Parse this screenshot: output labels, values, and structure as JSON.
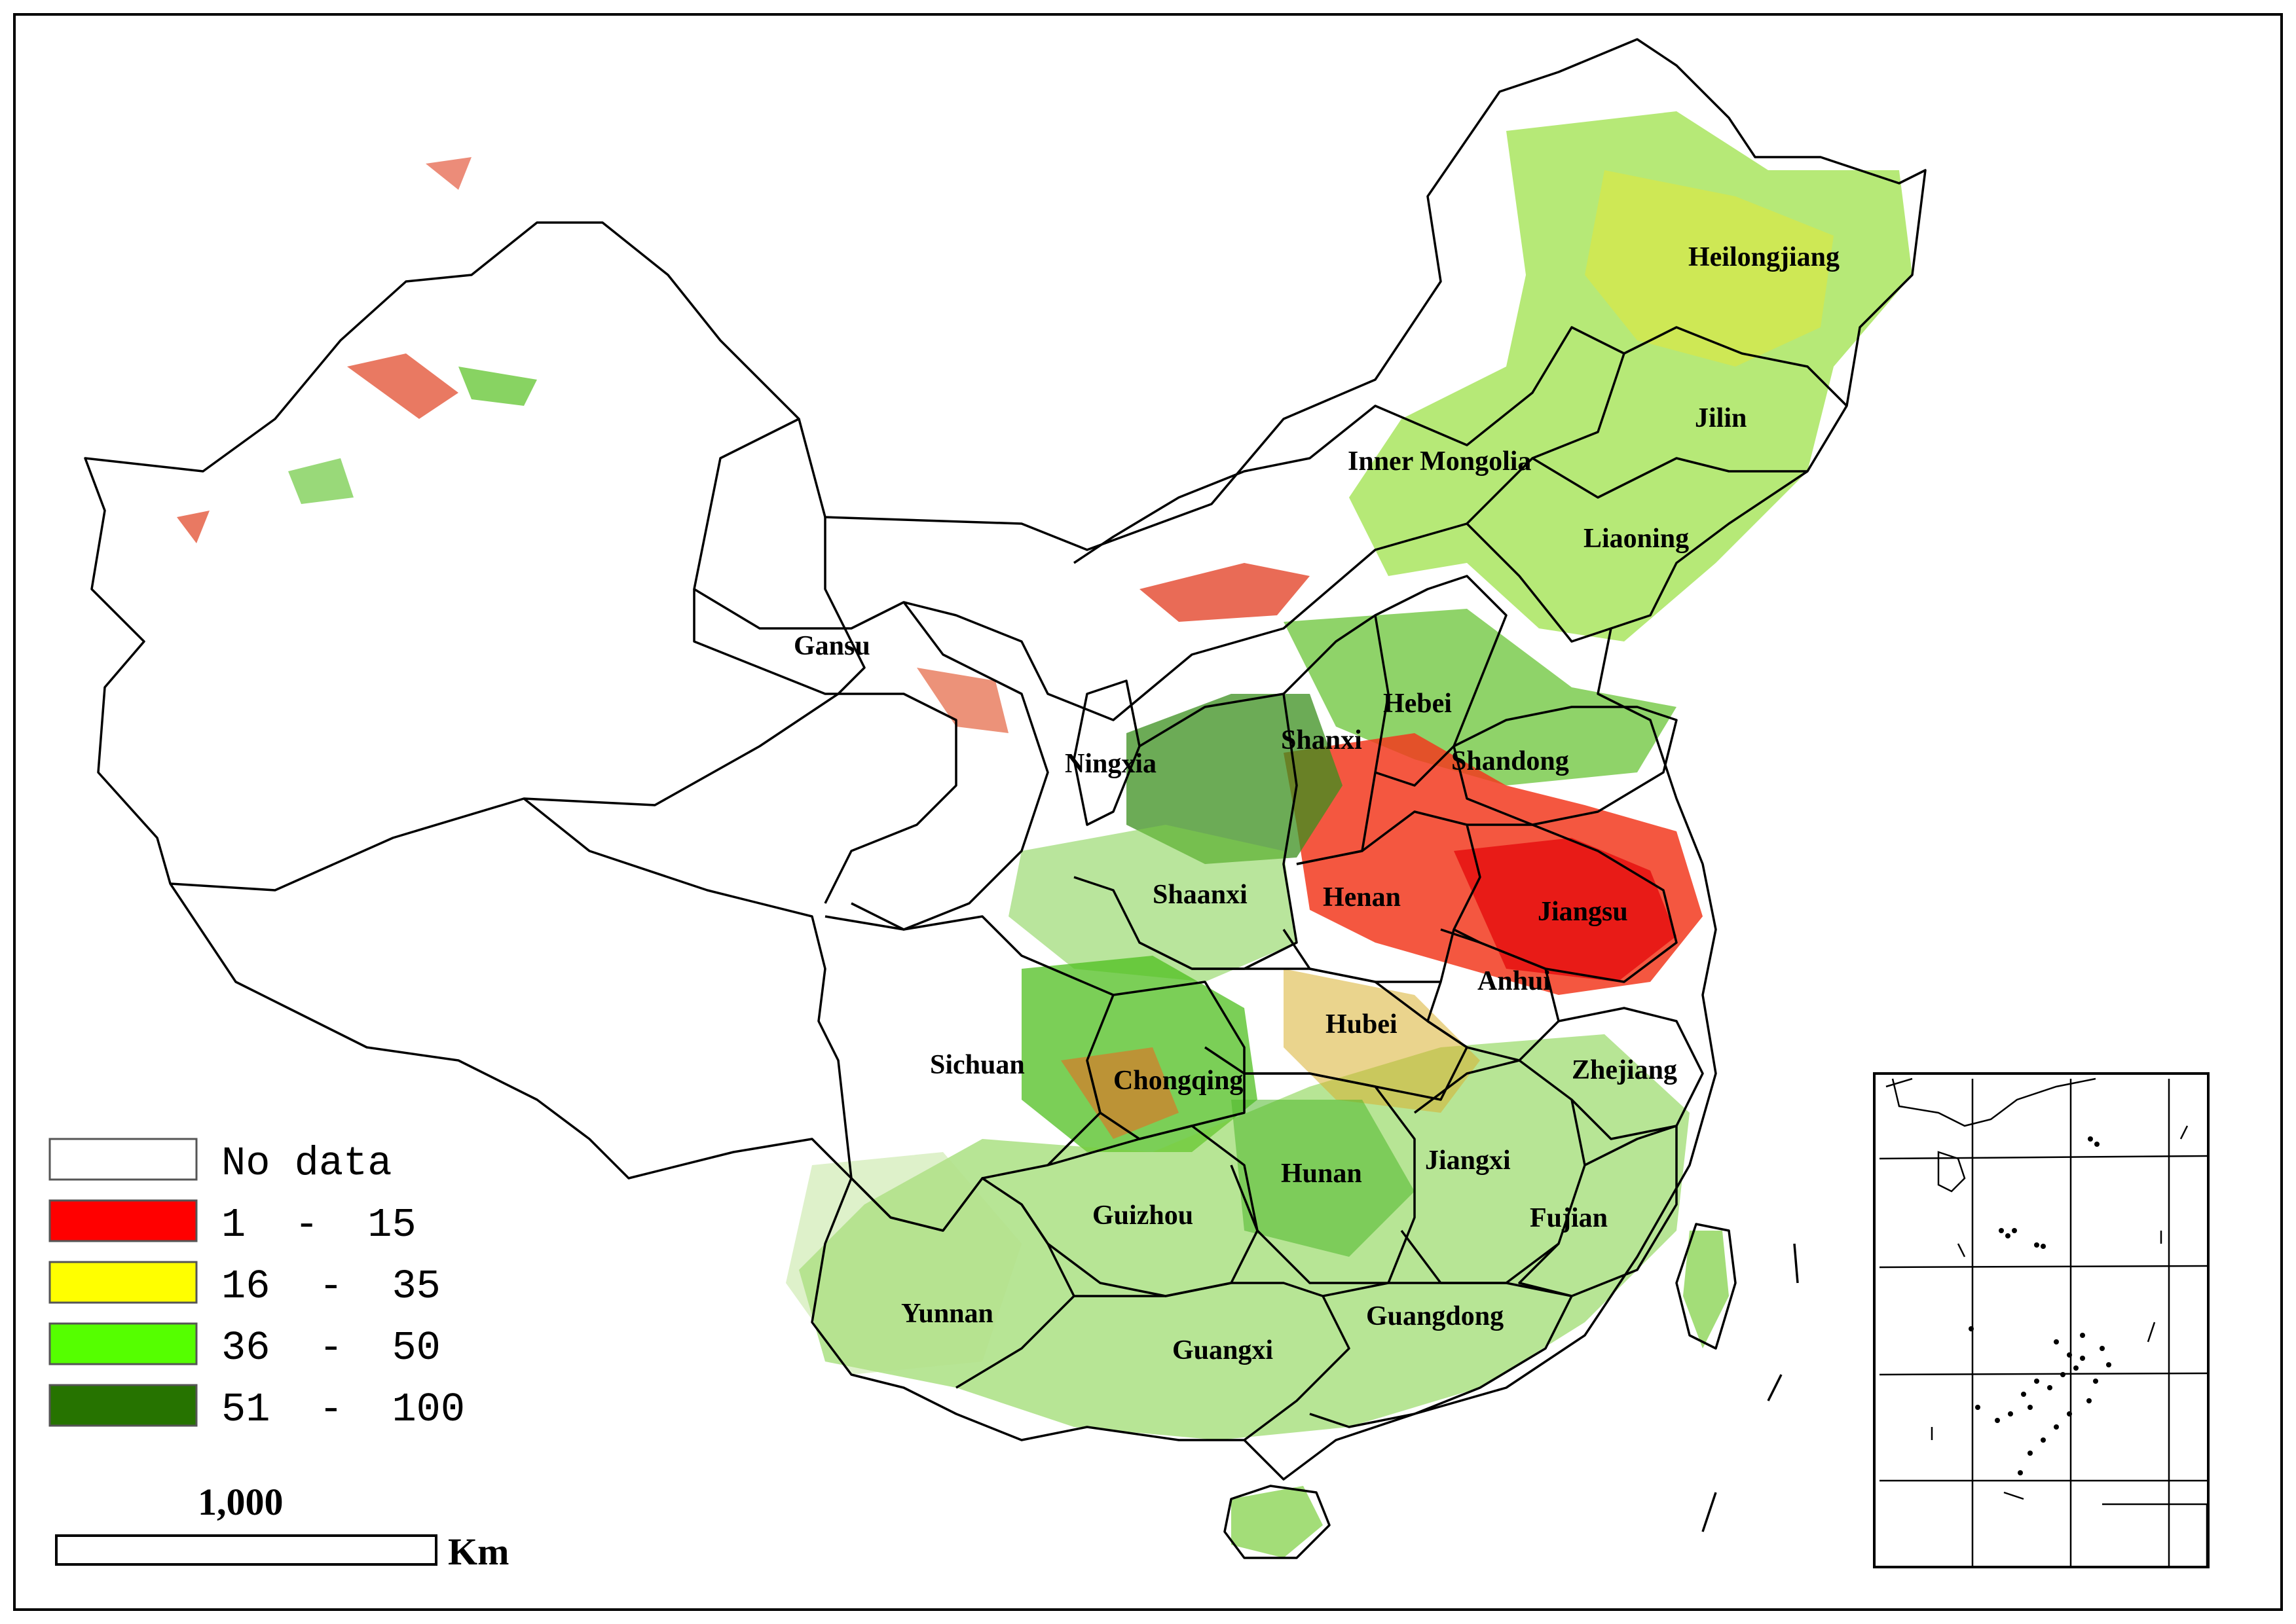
{
  "provinces": [
    {
      "key": "heilongjiang",
      "name": "Heilongjiang"
    },
    {
      "key": "jilin",
      "name": "Jilin"
    },
    {
      "key": "inner_mongolia",
      "name": "Inner Mongolia"
    },
    {
      "key": "liaoning",
      "name": "Liaoning"
    },
    {
      "key": "gansu",
      "name": "Gansu"
    },
    {
      "key": "hebei",
      "name": "Hebei"
    },
    {
      "key": "shanxi",
      "name": "Shanxi"
    },
    {
      "key": "shandong",
      "name": "Shandong"
    },
    {
      "key": "ningxia",
      "name": "Ningxia"
    },
    {
      "key": "shaanxi",
      "name": "Shaanxi"
    },
    {
      "key": "henan",
      "name": "Henan"
    },
    {
      "key": "jiangsu",
      "name": "Jiangsu"
    },
    {
      "key": "anhui",
      "name": "Anhui"
    },
    {
      "key": "hubei",
      "name": "Hubei"
    },
    {
      "key": "sichuan",
      "name": "Sichuan"
    },
    {
      "key": "chongqing",
      "name": "Chongqing"
    },
    {
      "key": "zhejiang",
      "name": "Zhejiang"
    },
    {
      "key": "hunan",
      "name": "Hunan"
    },
    {
      "key": "jiangxi",
      "name": "Jiangxi"
    },
    {
      "key": "guizhou",
      "name": "Guizhou"
    },
    {
      "key": "fujian",
      "name": "Fujian"
    },
    {
      "key": "yunnan",
      "name": "Yunnan"
    },
    {
      "key": "guangxi",
      "name": "Guangxi"
    },
    {
      "key": "guangdong",
      "name": "Guangdong"
    }
  ],
  "legend": [
    {
      "key": "nodata",
      "label": "No data",
      "color": "#ffffff"
    },
    {
      "key": "c1",
      "label": "1  -  15",
      "color": "#ff0000"
    },
    {
      "key": "c2",
      "label": "16  -  35",
      "color": "#ffff00"
    },
    {
      "key": "c3",
      "label": "36  -  50",
      "color": "#55ff00"
    },
    {
      "key": "c4",
      "label": "51  -  100",
      "color": "#267300"
    }
  ],
  "scale_bar": {
    "value": "1,000",
    "unit": "Km"
  }
}
